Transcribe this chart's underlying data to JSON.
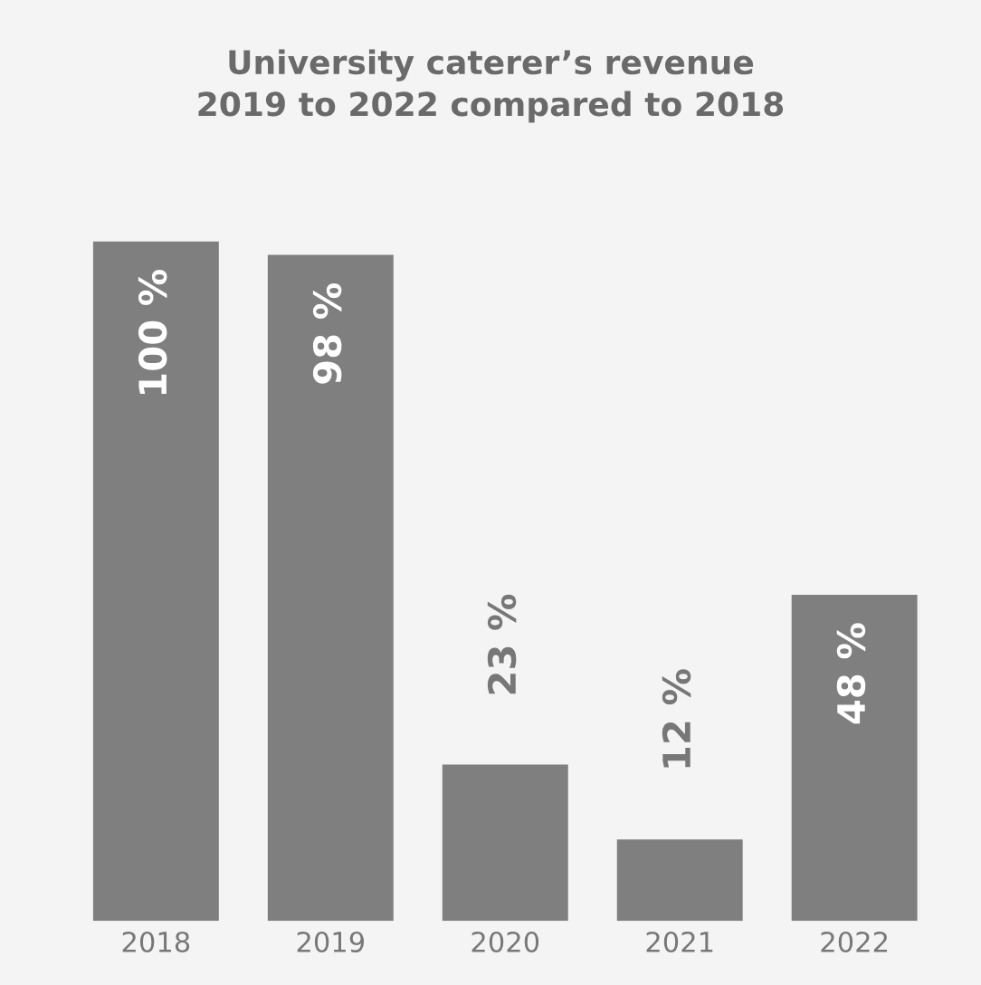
{
  "chart_data": {
    "type": "bar",
    "title": "University caterer’s revenue\n2019 to 2022 compared to 2018",
    "categories": [
      "2018",
      "2019",
      "2020",
      "2021",
      "2022"
    ],
    "values": [
      100,
      98,
      23,
      12,
      48
    ],
    "value_labels": [
      "100 %",
      "98 %",
      "23 %",
      "12 %",
      "48 %"
    ],
    "color": "#7f7f7f",
    "grid": false,
    "legend": false
  }
}
